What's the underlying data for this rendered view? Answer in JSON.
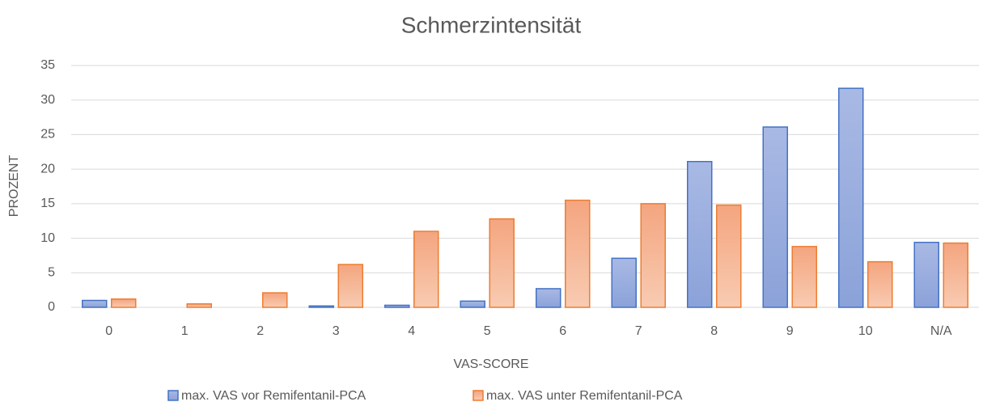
{
  "chart_data": {
    "type": "bar",
    "title": "Schmerzintensität",
    "x_label": "VAS-SCORE",
    "y_label": "PROZENT",
    "categories": [
      "0",
      "1",
      "2",
      "3",
      "4",
      "5",
      "6",
      "7",
      "8",
      "9",
      "10",
      "N/A"
    ],
    "series": [
      {
        "name": "max. VAS vor Remifentanil-PCA",
        "color": "#4472c4",
        "values": [
          1.0,
          0,
          0,
          0.2,
          0.3,
          0.9,
          2.7,
          7.1,
          21.1,
          26.1,
          31.7,
          9.4
        ]
      },
      {
        "name": "max. VAS unter Remifentanil-PCA",
        "color": "#ed7d31",
        "values": [
          1.2,
          0.5,
          2.1,
          6.2,
          11.0,
          12.8,
          15.5,
          15.0,
          14.8,
          8.8,
          6.6,
          9.3
        ]
      }
    ],
    "ylim": [
      0,
      35
    ],
    "yticks": [
      0,
      5,
      10,
      15,
      20,
      25,
      30,
      35
    ],
    "grid": true,
    "legend": "bottom"
  }
}
